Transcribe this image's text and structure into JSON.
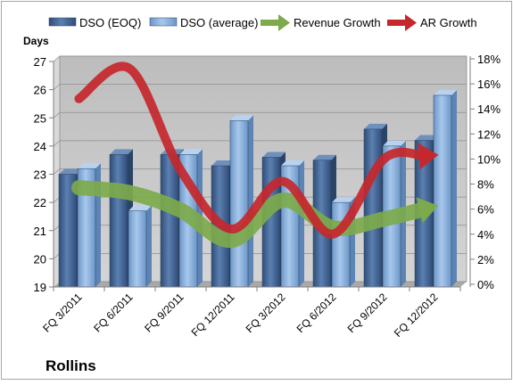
{
  "chart_data": {
    "type": "bar",
    "title": "Rollins",
    "ylabel_left": "Days",
    "categories": [
      "FQ 3/2011",
      "FQ 6/2011",
      "FQ 9/2011",
      "FQ 12/2011",
      "FQ 3/2012",
      "FQ 6/2012",
      "FQ 9/2012",
      "FQ 12/2012"
    ],
    "left_axis": {
      "min": 19,
      "max": 27,
      "ticks": [
        "19",
        "20",
        "21",
        "22",
        "23",
        "24",
        "25",
        "26",
        "27"
      ]
    },
    "right_axis": {
      "min": 0,
      "max": 18,
      "ticks": [
        "0%",
        "2%",
        "4%",
        "6%",
        "8%",
        "10%",
        "12%",
        "14%",
        "16%",
        "18%"
      ]
    },
    "bar_series": [
      {
        "name": "DSO (EOQ)",
        "values": [
          23.0,
          23.7,
          23.7,
          23.3,
          23.6,
          23.5,
          24.6,
          24.2
        ]
      },
      {
        "name": "DSO (average)",
        "values": [
          23.2,
          21.7,
          23.7,
          24.9,
          23.3,
          22.0,
          24.0,
          25.8
        ]
      }
    ],
    "line_series": [
      {
        "name": "Revenue Growth",
        "values": [
          7.5,
          7.1,
          5.7,
          3.3,
          6.5,
          4.3,
          5.0,
          6.0
        ]
      },
      {
        "name": "AR Growth",
        "values": [
          14.6,
          17.0,
          8.9,
          4.2,
          8.0,
          3.8,
          9.8,
          10.1
        ]
      }
    ],
    "legend_position": "top",
    "grid": true,
    "colors": {
      "eoq": "#4a6d9c",
      "average": "#8cb4e2",
      "revenue": "#7daa4c",
      "ar": "#c6272c",
      "plot_bg": "#c6c6c6"
    }
  }
}
